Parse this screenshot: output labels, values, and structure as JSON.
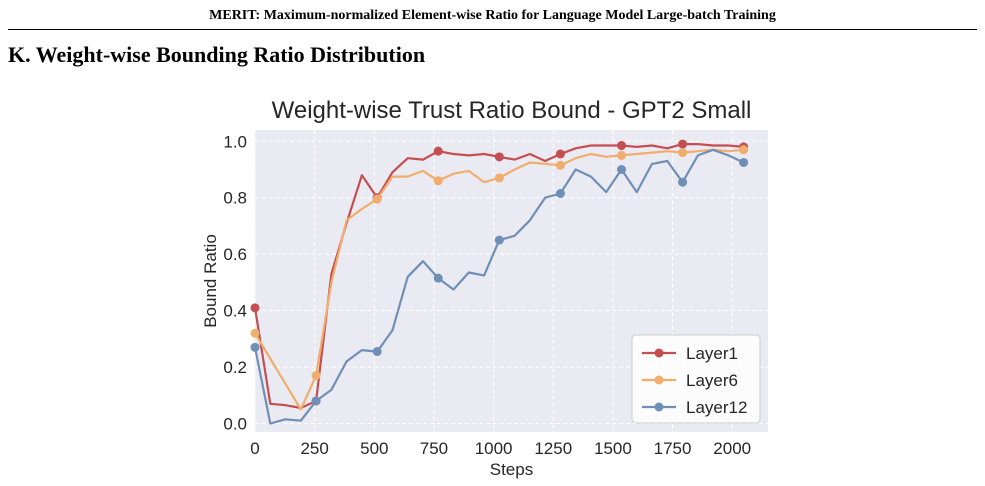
{
  "header": {
    "running_title": "MERIT: Maximum-normalized Element-wise Ratio for Language Model Large-batch Training"
  },
  "section": {
    "title": "K. Weight-wise Bounding Ratio Distribution"
  },
  "chart_data": {
    "type": "line",
    "title": "Weight-wise Trust Ratio Bound - GPT2 Small",
    "xlabel": "Steps",
    "ylabel": "Bound Ratio",
    "xlim": [
      0,
      2150
    ],
    "ylim": [
      -0.03,
      1.04
    ],
    "xticks": [
      0,
      250,
      500,
      750,
      1000,
      1250,
      1500,
      1750,
      2000
    ],
    "yticks": [
      0.0,
      0.2,
      0.4,
      0.6,
      0.8,
      1.0
    ],
    "xtick_labels": [
      "0",
      "250",
      "500",
      "750",
      "1000",
      "1250",
      "1500",
      "1750",
      "2000"
    ],
    "ytick_labels": [
      "0.0",
      "0.2",
      "0.4",
      "0.6",
      "0.8",
      "1.0"
    ],
    "grid": true,
    "background": "#eaeaf2",
    "legend_position": "bottom-right",
    "series": [
      {
        "name": "Layer1",
        "color": "#c44e52",
        "x": [
          0,
          64,
          128,
          192,
          256,
          320,
          384,
          448,
          512,
          576,
          640,
          704,
          768,
          832,
          896,
          960,
          1024,
          1088,
          1152,
          1216,
          1280,
          1344,
          1408,
          1472,
          1536,
          1600,
          1664,
          1728,
          1792,
          1856,
          1920,
          1984,
          2048
        ],
        "y": [
          0.41,
          0.07,
          0.065,
          0.055,
          0.08,
          0.53,
          0.71,
          0.88,
          0.8,
          0.89,
          0.94,
          0.935,
          0.965,
          0.955,
          0.95,
          0.955,
          0.945,
          0.935,
          0.955,
          0.93,
          0.955,
          0.975,
          0.985,
          0.985,
          0.985,
          0.98,
          0.985,
          0.975,
          0.99,
          0.99,
          0.985,
          0.985,
          0.98
        ],
        "markers": [
          0,
          4,
          8,
          12,
          16,
          20,
          24,
          28,
          32
        ]
      },
      {
        "name": "Layer6",
        "color": "#f0ad6b",
        "x": [
          0,
          192,
          256,
          320,
          384,
          448,
          512,
          576,
          640,
          704,
          768,
          832,
          896,
          960,
          1024,
          1088,
          1152,
          1216,
          1280,
          1344,
          1408,
          1472,
          1536,
          1600,
          1664,
          1728,
          1792,
          1856,
          1920,
          1984,
          2048
        ],
        "y": [
          0.32,
          0.05,
          0.17,
          0.5,
          0.72,
          0.76,
          0.795,
          0.875,
          0.875,
          0.895,
          0.86,
          0.885,
          0.895,
          0.855,
          0.87,
          0.9,
          0.925,
          0.92,
          0.915,
          0.94,
          0.955,
          0.945,
          0.95,
          0.955,
          0.96,
          0.965,
          0.96,
          0.965,
          0.97,
          0.965,
          0.97
        ],
        "markers": [
          0,
          2,
          6,
          10,
          14,
          18,
          22,
          26,
          30
        ]
      },
      {
        "name": "Layer12",
        "color": "#6f8fb6",
        "x": [
          0,
          64,
          128,
          192,
          256,
          320,
          384,
          448,
          512,
          576,
          640,
          704,
          768,
          832,
          896,
          960,
          1024,
          1088,
          1152,
          1216,
          1280,
          1344,
          1408,
          1472,
          1536,
          1600,
          1664,
          1728,
          1792,
          1856,
          1920,
          1984,
          2048
        ],
        "y": [
          0.27,
          0.0,
          0.015,
          0.01,
          0.08,
          0.12,
          0.22,
          0.26,
          0.255,
          0.33,
          0.52,
          0.575,
          0.515,
          0.475,
          0.535,
          0.525,
          0.65,
          0.665,
          0.72,
          0.8,
          0.815,
          0.9,
          0.875,
          0.82,
          0.9,
          0.82,
          0.92,
          0.93,
          0.855,
          0.95,
          0.97,
          0.95,
          0.925
        ],
        "markers": [
          0,
          4,
          8,
          12,
          16,
          20,
          24,
          28,
          32
        ]
      }
    ]
  }
}
